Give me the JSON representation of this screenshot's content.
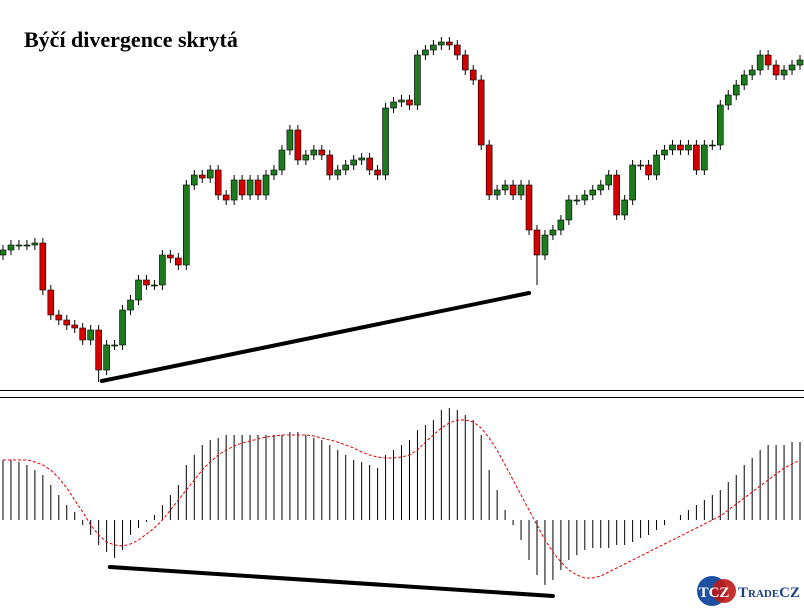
{
  "chart_data": [
    {
      "type": "candlestick",
      "title": "Býčí divergence skrytá",
      "open": [
        135,
        140,
        145,
        145,
        145,
        147,
        100,
        75,
        70,
        65,
        62,
        50,
        60,
        20,
        45,
        45,
        80,
        90,
        110,
        105,
        105,
        135,
        132,
        125,
        205,
        215,
        212,
        220,
        195,
        190,
        210,
        195,
        210,
        195,
        215,
        220,
        240,
        260,
        230,
        235,
        240,
        235,
        215,
        220,
        225,
        230,
        232,
        220,
        215,
        282,
        288,
        290,
        285,
        335,
        340,
        345,
        348,
        345,
        335,
        320,
        310,
        245,
        195,
        200,
        205,
        195,
        205,
        160,
        135,
        155,
        160,
        170,
        190,
        190,
        195,
        200,
        205,
        215,
        175,
        190,
        225,
        225,
        215,
        235,
        240,
        245,
        240,
        245,
        220,
        245,
        245,
        285,
        295,
        305,
        315,
        320,
        335,
        325,
        315,
        320,
        325
      ],
      "high": [
        145,
        150,
        150,
        150,
        152,
        152,
        105,
        80,
        75,
        70,
        67,
        65,
        65,
        50,
        50,
        85,
        95,
        115,
        115,
        110,
        140,
        140,
        137,
        210,
        220,
        220,
        225,
        225,
        200,
        215,
        215,
        215,
        215,
        220,
        225,
        245,
        265,
        265,
        240,
        245,
        245,
        240,
        225,
        230,
        235,
        237,
        237,
        225,
        287,
        293,
        295,
        295,
        340,
        345,
        350,
        353,
        353,
        350,
        340,
        325,
        315,
        250,
        205,
        210,
        210,
        210,
        210,
        165,
        160,
        165,
        175,
        195,
        195,
        200,
        205,
        210,
        220,
        220,
        195,
        230,
        230,
        230,
        240,
        245,
        250,
        250,
        250,
        250,
        250,
        250,
        290,
        300,
        310,
        320,
        325,
        340,
        340,
        330,
        325,
        330,
        335
      ],
      "low": [
        130,
        135,
        140,
        140,
        140,
        95,
        70,
        65,
        60,
        57,
        45,
        45,
        8,
        15,
        40,
        40,
        75,
        85,
        100,
        100,
        100,
        127,
        120,
        120,
        200,
        207,
        207,
        190,
        185,
        185,
        190,
        190,
        190,
        190,
        210,
        215,
        235,
        225,
        225,
        230,
        230,
        210,
        210,
        215,
        220,
        225,
        215,
        210,
        210,
        277,
        283,
        280,
        280,
        330,
        335,
        340,
        340,
        330,
        315,
        305,
        240,
        190,
        190,
        195,
        190,
        190,
        155,
        105,
        130,
        150,
        155,
        165,
        185,
        185,
        190,
        195,
        200,
        170,
        170,
        185,
        220,
        210,
        210,
        230,
        235,
        235,
        235,
        215,
        215,
        240,
        240,
        280,
        290,
        300,
        310,
        315,
        320,
        310,
        310,
        315,
        320
      ],
      "close": [
        140,
        145,
        145,
        145,
        147,
        100,
        75,
        70,
        65,
        62,
        50,
        60,
        20,
        45,
        45,
        80,
        90,
        110,
        105,
        105,
        135,
        132,
        125,
        205,
        215,
        212,
        220,
        195,
        190,
        210,
        195,
        210,
        195,
        215,
        220,
        240,
        260,
        230,
        235,
        240,
        235,
        215,
        220,
        225,
        230,
        232,
        220,
        215,
        282,
        288,
        290,
        285,
        335,
        340,
        345,
        348,
        345,
        335,
        320,
        310,
        245,
        195,
        200,
        205,
        195,
        205,
        160,
        135,
        155,
        160,
        170,
        190,
        190,
        195,
        200,
        205,
        215,
        175,
        190,
        225,
        225,
        215,
        235,
        240,
        245,
        240,
        245,
        220,
        245,
        245,
        285,
        295,
        305,
        315,
        320,
        335,
        325,
        315,
        320,
        325,
        330
      ],
      "up_color": "#1f7a1f",
      "down_color": "#d40000",
      "ylim": [
        0,
        390
      ],
      "trendline": {
        "x": [
          12.4,
          66
        ],
        "y": [
          9,
          97
        ],
        "color": "#000000"
      }
    },
    {
      "type": "macd",
      "values": [
        60,
        60,
        58,
        55,
        50,
        45,
        35,
        25,
        15,
        8,
        -5,
        -15,
        -25,
        -32,
        -38,
        -30,
        -15,
        -8,
        -2,
        5,
        15,
        25,
        35,
        55,
        65,
        75,
        80,
        82,
        85,
        85,
        85,
        85,
        85,
        85,
        85,
        85,
        88,
        88,
        85,
        82,
        80,
        75,
        70,
        65,
        60,
        58,
        55,
        52,
        65,
        70,
        75,
        80,
        90,
        95,
        100,
        110,
        112,
        110,
        105,
        100,
        85,
        50,
        30,
        10,
        -5,
        -20,
        -40,
        -55,
        -65,
        -60,
        -50,
        -40,
        -35,
        -30,
        -28,
        -28,
        -28,
        -25,
        -25,
        -22,
        -18,
        -15,
        -10,
        -5,
        0,
        5,
        10,
        15,
        20,
        25,
        30,
        38,
        45,
        55,
        62,
        70,
        75,
        75,
        75,
        78,
        78
      ],
      "color": "#000000",
      "signal": {
        "color": "#e00000",
        "values": [
          60,
          60,
          60,
          60,
          58,
          55,
          50,
          42,
          32,
          20,
          8,
          -5,
          -15,
          -22,
          -25,
          -26,
          -24,
          -20,
          -14,
          -8,
          0,
          10,
          20,
          30,
          40,
          50,
          58,
          65,
          70,
          74,
          77,
          79,
          81,
          83,
          84,
          85,
          85,
          85,
          85,
          84,
          82,
          80,
          78,
          75,
          72,
          68,
          65,
          63,
          62,
          62,
          63,
          65,
          70,
          78,
          85,
          92,
          97,
          100,
          100,
          98,
          92,
          82,
          70,
          55,
          40,
          25,
          10,
          -5,
          -20,
          -32,
          -42,
          -50,
          -55,
          -58,
          -58,
          -56,
          -52,
          -48,
          -44,
          -40,
          -36,
          -32,
          -28,
          -24,
          -20,
          -16,
          -12,
          -8,
          -4,
          0,
          4,
          10,
          16,
          22,
          28,
          34,
          40,
          46,
          52,
          56,
          60
        ]
      },
      "ylim": [
        -91,
        122
      ],
      "trendline": {
        "x": [
          13.4,
          69
        ],
        "y": [
          -47,
          -76
        ],
        "color": "#000000"
      }
    }
  ],
  "logo": {
    "mark": "TCZ",
    "name": "TradeCZ"
  }
}
